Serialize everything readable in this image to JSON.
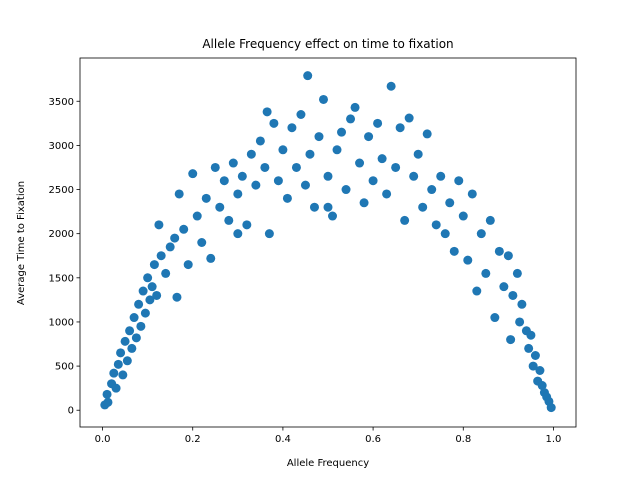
{
  "chart_data": {
    "type": "scatter",
    "title": "Allele Frequency effect on time to fixation",
    "x_label": "Allele Frequency",
    "y_label": "Average Time to Fixation",
    "color": "#1f77b4",
    "x": [
      0.005,
      0.01,
      0.012,
      0.02,
      0.025,
      0.03,
      0.035,
      0.04,
      0.045,
      0.05,
      0.055,
      0.06,
      0.065,
      0.07,
      0.075,
      0.08,
      0.085,
      0.09,
      0.095,
      0.1,
      0.105,
      0.11,
      0.115,
      0.12,
      0.125,
      0.13,
      0.14,
      0.15,
      0.16,
      0.165,
      0.17,
      0.18,
      0.19,
      0.2,
      0.21,
      0.22,
      0.23,
      0.24,
      0.25,
      0.26,
      0.27,
      0.28,
      0.29,
      0.3,
      0.31,
      0.32,
      0.33,
      0.34,
      0.35,
      0.36,
      0.365,
      0.37,
      0.38,
      0.39,
      0.4,
      0.41,
      0.42,
      0.43,
      0.44,
      0.45,
      0.455,
      0.46,
      0.47,
      0.48,
      0.49,
      0.5,
      0.51,
      0.52,
      0.53,
      0.54,
      0.55,
      0.56,
      0.57,
      0.58,
      0.59,
      0.6,
      0.61,
      0.62,
      0.63,
      0.64,
      0.65,
      0.66,
      0.67,
      0.68,
      0.69,
      0.7,
      0.71,
      0.72,
      0.73,
      0.74,
      0.75,
      0.76,
      0.77,
      0.78,
      0.79,
      0.8,
      0.81,
      0.82,
      0.83,
      0.84,
      0.85,
      0.86,
      0.87,
      0.88,
      0.89,
      0.9,
      0.905,
      0.91,
      0.92,
      0.925,
      0.93,
      0.94,
      0.945,
      0.95,
      0.955,
      0.96,
      0.965,
      0.97,
      0.975,
      0.98,
      0.985,
      0.99,
      0.995,
      0.5,
      0.3
    ],
    "values": [
      60,
      180,
      90,
      300,
      420,
      250,
      520,
      650,
      400,
      780,
      560,
      900,
      700,
      1050,
      820,
      1200,
      950,
      1350,
      1100,
      1500,
      1250,
      1400,
      1650,
      1300,
      2100,
      1750,
      1550,
      1850,
      1950,
      1280,
      2450,
      2050,
      1650,
      2680,
      2200,
      1900,
      2400,
      1720,
      2750,
      2300,
      2600,
      2150,
      2800,
      2450,
      2650,
      2100,
      2900,
      2550,
      3050,
      2750,
      3380,
      2000,
      3250,
      2600,
      2950,
      2400,
      3200,
      2750,
      3350,
      2550,
      3790,
      2900,
      2300,
      3100,
      3520,
      2650,
      2200,
      2950,
      3150,
      2500,
      3300,
      3430,
      2800,
      2350,
      3100,
      2600,
      3250,
      2850,
      2450,
      3670,
      2750,
      3200,
      2150,
      3310,
      2650,
      2900,
      2300,
      3130,
      2500,
      2100,
      2650,
      2000,
      2350,
      1800,
      2600,
      2200,
      1700,
      2450,
      1350,
      2000,
      1550,
      2150,
      1050,
      1800,
      1400,
      1750,
      800,
      1300,
      1550,
      1000,
      1200,
      900,
      700,
      850,
      500,
      620,
      330,
      450,
      280,
      200,
      150,
      100,
      30,
      2300,
      2000
    ],
    "xlim": [
      -0.05,
      1.05
    ],
    "ylim": [
      -190,
      3990
    ],
    "xticks": [
      {
        "value": 0,
        "label": "0.0"
      },
      0.2,
      0.4,
      0.6,
      0.8,
      {
        "value": 1,
        "label": "1.0"
      }
    ],
    "yticks": [
      0,
      500,
      1000,
      1500,
      2000,
      2500,
      3000,
      3500
    ]
  }
}
